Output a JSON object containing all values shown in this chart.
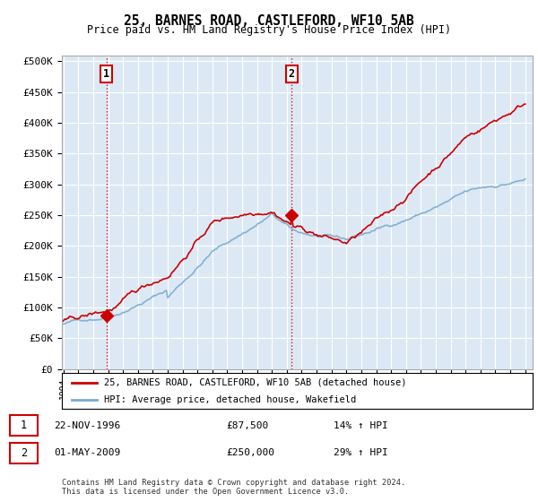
{
  "title": "25, BARNES ROAD, CASTLEFORD, WF10 5AB",
  "subtitle": "Price paid vs. HM Land Registry's House Price Index (HPI)",
  "legend_line1": "25, BARNES ROAD, CASTLEFORD, WF10 5AB (detached house)",
  "legend_line2": "HPI: Average price, detached house, Wakefield",
  "annotation1_label": "1",
  "annotation1_date": "22-NOV-1996",
  "annotation1_price": "£87,500",
  "annotation1_hpi": "14% ↑ HPI",
  "annotation2_label": "2",
  "annotation2_date": "01-MAY-2009",
  "annotation2_price": "£250,000",
  "annotation2_hpi": "29% ↑ HPI",
  "footer": "Contains HM Land Registry data © Crown copyright and database right 2024.\nThis data is licensed under the Open Government Licence v3.0.",
  "red_color": "#cc0000",
  "blue_color": "#7aabcf",
  "bg_color": "#dce9f5",
  "grid_color": "#ffffff",
  "ylim": [
    0,
    500000
  ],
  "yticks": [
    0,
    50000,
    100000,
    150000,
    200000,
    250000,
    300000,
    350000,
    400000,
    450000,
    500000
  ],
  "sale1_year": 1996.9,
  "sale1_price": 87500,
  "sale2_year": 2009.33,
  "sale2_price": 250000,
  "xstart": 1994,
  "xend": 2025
}
